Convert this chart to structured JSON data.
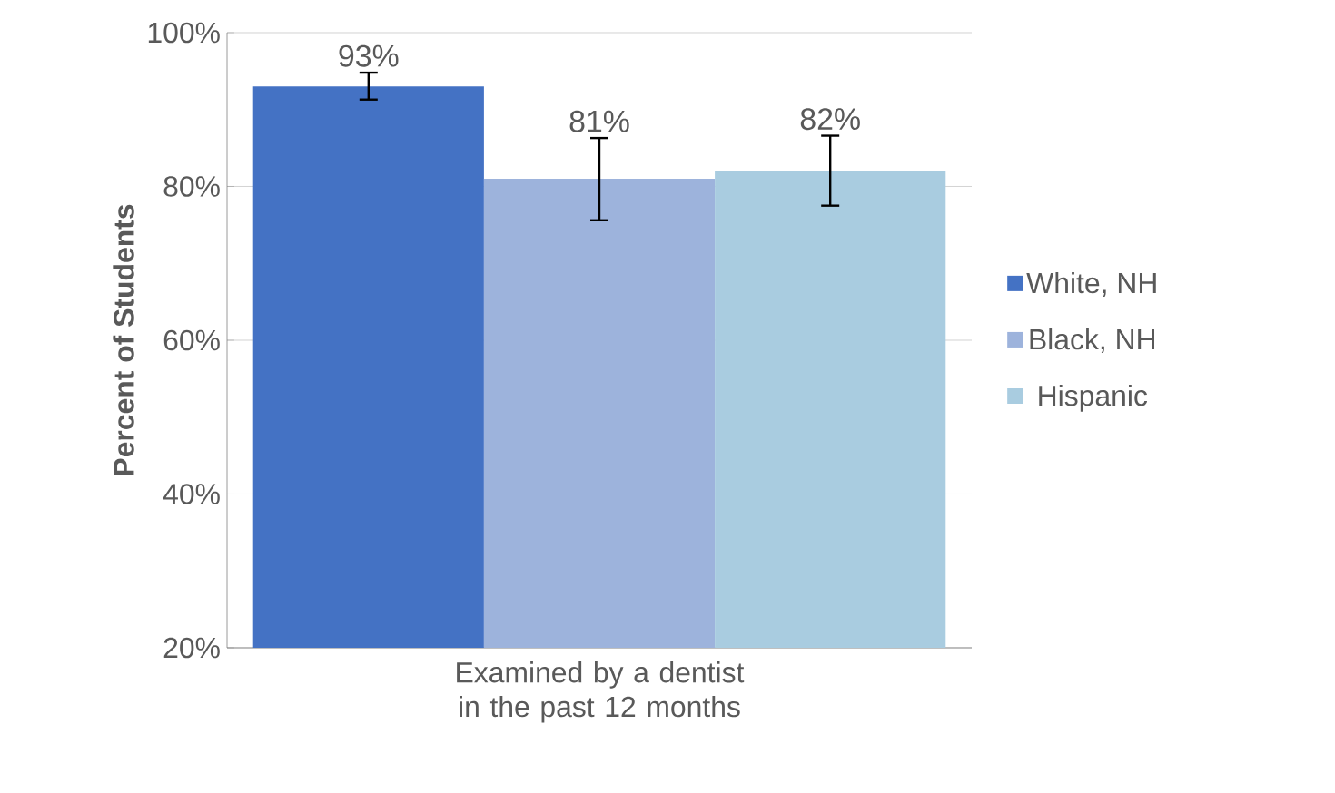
{
  "chart_data": {
    "type": "bar",
    "ylabel": "Percent of Students",
    "categories": [
      "Examined by a dentist in the past 12 months"
    ],
    "series": [
      {
        "name": "White, NH",
        "color": "#4472c4",
        "values": [
          93
        ],
        "errors": [
          [
            91.3,
            94.8
          ]
        ],
        "value_labels": [
          "93%"
        ]
      },
      {
        "name": "Black, NH",
        "color": "#9db3dc",
        "values": [
          81
        ],
        "errors": [
          [
            75.6,
            86.3
          ]
        ],
        "value_labels": [
          "81%"
        ]
      },
      {
        "name": "Hispanic",
        "color": "#a9cce0",
        "values": [
          82
        ],
        "errors": [
          [
            77.5,
            86.6
          ]
        ],
        "value_labels": [
          "82%"
        ]
      }
    ],
    "ylim": [
      20,
      100
    ],
    "yticks": [
      {
        "value": 20,
        "label": "20%"
      },
      {
        "value": 40,
        "label": "40%"
      },
      {
        "value": 60,
        "label": "60%"
      },
      {
        "value": 80,
        "label": "80%"
      },
      {
        "value": 100,
        "label": "100%"
      }
    ],
    "grid": "y",
    "legend": "right"
  }
}
